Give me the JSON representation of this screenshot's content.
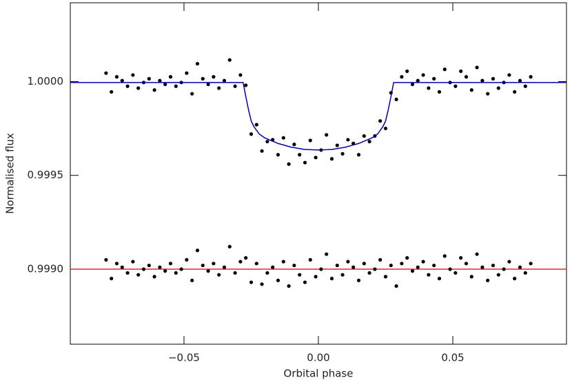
{
  "chart_data": {
    "type": "scatter",
    "xlabel": "Orbital phase",
    "ylabel": "Normalised flux",
    "xlim": [
      -0.0923,
      0.0923
    ],
    "ylim": [
      0.9986,
      1.00042
    ],
    "xticks": [
      {
        "value": -0.05,
        "label": "−0.05"
      },
      {
        "value": 0,
        "label": "0.00"
      },
      {
        "value": 0.05,
        "label": "0.05"
      }
    ],
    "yticks": [
      {
        "value": 0.999,
        "label": "0.9990"
      },
      {
        "value": 0.9995,
        "label": "0.9995"
      },
      {
        "value": 1.0,
        "label": "1.0000"
      }
    ],
    "series": [
      {
        "type": "scatter",
        "color": "#000000",
        "x": [
          -0.079,
          -0.077,
          -0.075,
          -0.073,
          -0.071,
          -0.069,
          -0.067,
          -0.065,
          -0.063,
          -0.061,
          -0.059,
          -0.057,
          -0.055,
          -0.053,
          -0.051,
          -0.049,
          -0.047,
          -0.045,
          -0.043,
          -0.041,
          -0.039,
          -0.037,
          -0.035,
          -0.033,
          -0.031,
          -0.029,
          -0.027,
          -0.025,
          -0.023,
          -0.021,
          -0.019,
          -0.017,
          -0.015,
          -0.013,
          -0.011,
          -0.009,
          -0.007,
          -0.005,
          -0.003,
          -0.001,
          0.001,
          0.003,
          0.005,
          0.007,
          0.009,
          0.011,
          0.013,
          0.015,
          0.017,
          0.019,
          0.021,
          0.023,
          0.025,
          0.027,
          0.029,
          0.031,
          0.033,
          0.035,
          0.037,
          0.039,
          0.041,
          0.043,
          0.045,
          0.047,
          0.049,
          0.051,
          0.053,
          0.055,
          0.057,
          0.059,
          0.061,
          0.063,
          0.065,
          0.067,
          0.069,
          0.071,
          0.073,
          0.075,
          0.077,
          0.079
        ],
        "values": [
          1.000045,
          0.999945,
          1.000025,
          1.000005,
          0.999975,
          1.000035,
          0.999965,
          0.999995,
          1.000015,
          0.999955,
          1.000005,
          0.999985,
          1.000025,
          0.999975,
          0.999995,
          1.000045,
          0.999935,
          1.000095,
          1.000015,
          0.999985,
          1.000025,
          0.999965,
          1.000005,
          1.000115,
          0.999975,
          1.000035,
          0.99998,
          0.99972,
          0.99977,
          0.99963,
          0.99968,
          0.99969,
          0.99961,
          0.9997,
          0.99956,
          0.999665,
          0.99961,
          0.999568,
          0.999686,
          0.999595,
          0.999635,
          0.999716,
          0.999588,
          0.99966,
          0.999615,
          0.99969,
          0.99967,
          0.99961,
          0.99971,
          0.99968,
          0.99971,
          0.99979,
          0.99975,
          0.99994,
          0.999905,
          1.000025,
          1.000055,
          0.999985,
          1.000005,
          1.000035,
          0.999965,
          1.000015,
          0.999945,
          1.000065,
          0.999995,
          0.999975,
          1.000055,
          1.000025,
          0.999955,
          1.000075,
          1.000005,
          0.999935,
          1.000015,
          0.999965,
          0.999995,
          1.000035,
          0.999945,
          1.000005,
          0.999975,
          1.000025
        ]
      },
      {
        "type": "line",
        "color": "#0000aa",
        "x": [
          -0.0923,
          -0.028,
          -0.027,
          -0.026,
          -0.025,
          -0.024,
          -0.022,
          -0.02,
          -0.015,
          -0.01,
          -0.005,
          0,
          0.005,
          0.01,
          0.015,
          0.02,
          0.022,
          0.024,
          0.025,
          0.026,
          0.027,
          0.028,
          0.0923
        ],
        "values": [
          0.999995,
          0.999995,
          0.99992,
          0.99985,
          0.99979,
          0.99976,
          0.99972,
          0.9997,
          0.99967,
          0.99965,
          0.999638,
          0.999635,
          0.999638,
          0.99965,
          0.99967,
          0.9997,
          0.99972,
          0.99976,
          0.99979,
          0.99985,
          0.99992,
          0.999995,
          0.999995
        ]
      },
      {
        "type": "line",
        "color": "#ee2222",
        "x": [
          -0.0923,
          0.0923
        ],
        "values": [
          0.999,
          0.999
        ]
      },
      {
        "type": "scatter",
        "color": "#000000",
        "x": [
          -0.079,
          -0.077,
          -0.075,
          -0.073,
          -0.071,
          -0.069,
          -0.067,
          -0.065,
          -0.063,
          -0.061,
          -0.059,
          -0.057,
          -0.055,
          -0.053,
          -0.051,
          -0.049,
          -0.047,
          -0.045,
          -0.043,
          -0.041,
          -0.039,
          -0.037,
          -0.035,
          -0.033,
          -0.031,
          -0.029,
          -0.027,
          -0.025,
          -0.023,
          -0.021,
          -0.019,
          -0.017,
          -0.015,
          -0.013,
          -0.011,
          -0.009,
          -0.007,
          -0.005,
          -0.003,
          -0.001,
          0.001,
          0.003,
          0.005,
          0.007,
          0.009,
          0.011,
          0.013,
          0.015,
          0.017,
          0.019,
          0.021,
          0.023,
          0.025,
          0.027,
          0.029,
          0.031,
          0.033,
          0.035,
          0.037,
          0.039,
          0.041,
          0.043,
          0.045,
          0.047,
          0.049,
          0.051,
          0.053,
          0.055,
          0.057,
          0.059,
          0.061,
          0.063,
          0.065,
          0.067,
          0.069,
          0.071,
          0.073,
          0.075,
          0.077,
          0.079
        ],
        "values": [
          0.99905,
          0.99895,
          0.99903,
          0.99901,
          0.99898,
          0.99904,
          0.99897,
          0.999,
          0.99902,
          0.99896,
          0.99901,
          0.99899,
          0.99903,
          0.99898,
          0.999,
          0.99905,
          0.99894,
          0.9991,
          0.99902,
          0.99899,
          0.99903,
          0.99897,
          0.99901,
          0.99912,
          0.99898,
          0.99904,
          0.99906,
          0.99893,
          0.99903,
          0.99892,
          0.99898,
          0.99901,
          0.99894,
          0.99904,
          0.99891,
          0.99902,
          0.99897,
          0.99893,
          0.99905,
          0.99896,
          0.999,
          0.99908,
          0.99895,
          0.99902,
          0.99897,
          0.99904,
          0.99901,
          0.99894,
          0.99903,
          0.99898,
          0.999,
          0.99905,
          0.99896,
          0.99902,
          0.99891,
          0.99903,
          0.99906,
          0.99899,
          0.99901,
          0.99904,
          0.99897,
          0.99902,
          0.99895,
          0.99907,
          0.999,
          0.99898,
          0.99906,
          0.99903,
          0.99896,
          0.99908,
          0.99901,
          0.99894,
          0.99902,
          0.99897,
          0.999,
          0.99904,
          0.99895,
          0.99901,
          0.99898,
          0.99903
        ]
      }
    ]
  }
}
